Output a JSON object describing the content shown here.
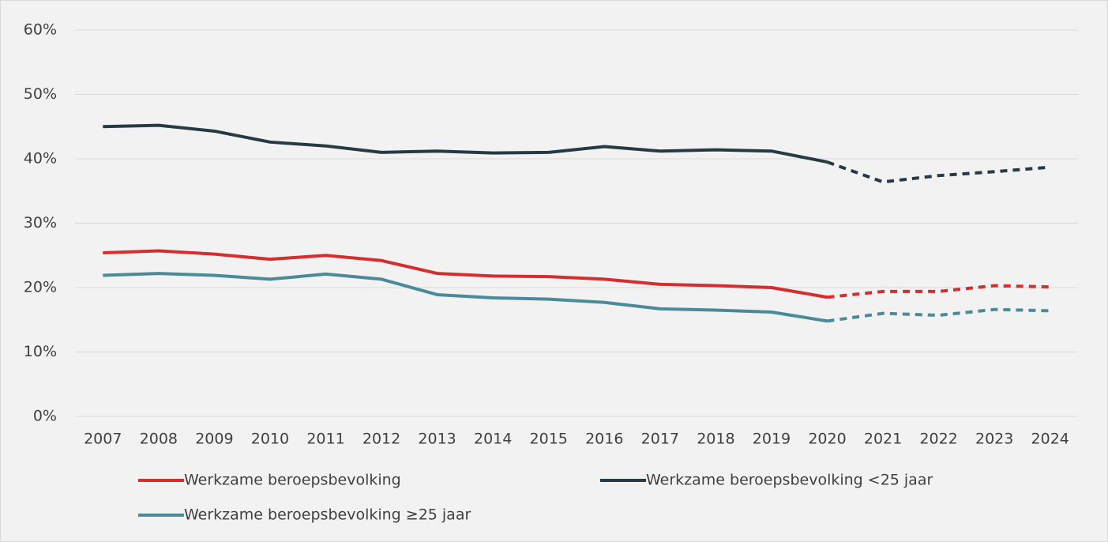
{
  "chart_data": {
    "type": "line",
    "categories": [
      "2007",
      "2008",
      "2009",
      "2010",
      "2011",
      "2012",
      "2013",
      "2014",
      "2015",
      "2016",
      "2017",
      "2018",
      "2019",
      "2020",
      "2021",
      "2022",
      "2023",
      "2024"
    ],
    "dashed_from": "2020",
    "series": [
      {
        "name": "Werkzame beroepsbevolking",
        "color": "#d42e2e",
        "values": [
          25.4,
          25.7,
          25.2,
          24.4,
          25.0,
          24.2,
          22.2,
          21.8,
          21.7,
          21.3,
          20.5,
          20.3,
          20.0,
          18.5,
          19.4,
          19.4,
          20.3,
          20.1
        ]
      },
      {
        "name": "Werkzame beroepsbevolking <25 jaar",
        "color": "#263a44",
        "values": [
          45.0,
          45.2,
          44.3,
          42.6,
          42.0,
          41.0,
          41.2,
          40.9,
          41.0,
          41.9,
          41.2,
          41.4,
          41.2,
          39.5,
          36.4,
          37.4,
          38.0,
          38.7
        ]
      },
      {
        "name": "Werkzame beroepsbevolking ≥25 jaar",
        "color": "#4a8a99",
        "values": [
          21.9,
          22.2,
          21.9,
          21.3,
          22.1,
          21.3,
          18.9,
          18.4,
          18.2,
          17.7,
          16.7,
          16.5,
          16.2,
          14.8,
          16.0,
          15.7,
          16.6,
          16.4
        ]
      }
    ],
    "ylim": [
      0,
      60
    ],
    "yticks": [
      {
        "value": 0,
        "label": "0%"
      },
      {
        "value": 10,
        "label": "10%"
      },
      {
        "value": 20,
        "label": "20%"
      },
      {
        "value": 30,
        "label": "30%"
      },
      {
        "value": 40,
        "label": "40%"
      },
      {
        "value": 50,
        "label": "50%"
      },
      {
        "value": 60,
        "label": "60%"
      }
    ],
    "grid": true,
    "legend": "bottom"
  }
}
